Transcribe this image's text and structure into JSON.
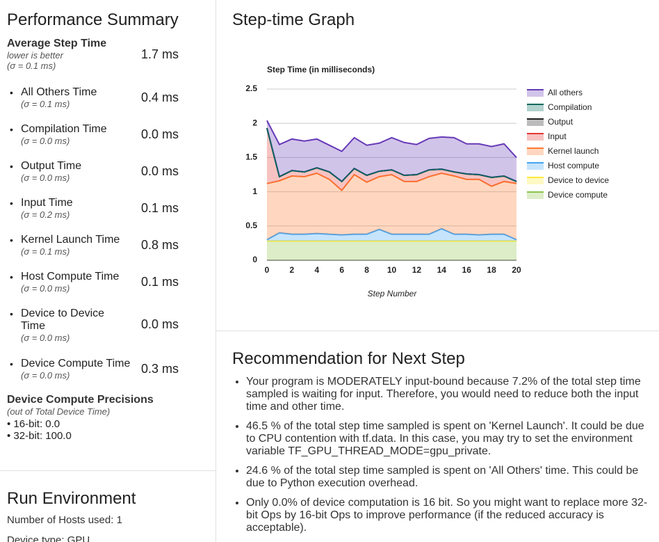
{
  "summary": {
    "title": "Performance Summary",
    "average": {
      "label": "Average Step Time",
      "note": "lower is better",
      "sigma": "(σ = 0.1 ms)",
      "value": "1.7 ms"
    },
    "items": [
      {
        "label": "All Others Time",
        "sigma": "(σ = 0.1 ms)",
        "value": "0.4 ms"
      },
      {
        "label": "Compilation Time",
        "sigma": "(σ = 0.0 ms)",
        "value": "0.0 ms"
      },
      {
        "label": "Output Time",
        "sigma": "(σ = 0.0 ms)",
        "value": "0.0 ms"
      },
      {
        "label": "Input Time",
        "sigma": "(σ = 0.2 ms)",
        "value": "0.1 ms"
      },
      {
        "label": "Kernel Launch Time",
        "sigma": "(σ = 0.1 ms)",
        "value": "0.8 ms"
      },
      {
        "label": "Host Compute Time",
        "sigma": "(σ = 0.0 ms)",
        "value": "0.1 ms"
      },
      {
        "label": "Device to Device Time",
        "sigma": "(σ = 0.0 ms)",
        "value": "0.0 ms"
      },
      {
        "label": "Device Compute Time",
        "sigma": "(σ = 0.0 ms)",
        "value": "0.3 ms"
      }
    ],
    "precisions": {
      "title": "Device Compute Precisions",
      "note": "(out of Total Device Time)",
      "items": [
        "16-bit: 0.0",
        "32-bit: 100.0"
      ]
    }
  },
  "run_environment": {
    "title": "Run Environment",
    "lines": [
      "Number of Hosts used: 1",
      "Device type: GPU"
    ]
  },
  "graph_heading": "Step-time Graph",
  "chart_data": {
    "type": "stacked-area",
    "title": "Step Time (in milliseconds)",
    "x_label": "Step Number",
    "x": [
      0,
      1,
      2,
      3,
      4,
      5,
      6,
      7,
      8,
      9,
      10,
      11,
      12,
      13,
      14,
      15,
      16,
      17,
      18,
      19,
      20
    ],
    "xlim": [
      0,
      20
    ],
    "xticks": [
      0,
      2,
      4,
      6,
      8,
      10,
      12,
      14,
      16,
      18,
      20
    ],
    "ylim": [
      0,
      2.5
    ],
    "yticks": [
      0,
      0.5,
      1,
      1.5,
      2,
      2.5
    ],
    "grid": true,
    "series": [
      {
        "name": "All others",
        "color": "#673ab7",
        "values": [
          0.11,
          0.47,
          0.46,
          0.45,
          0.42,
          0.39,
          0.44,
          0.45,
          0.44,
          0.41,
          0.47,
          0.48,
          0.44,
          0.46,
          0.47,
          0.5,
          0.44,
          0.45,
          0.45,
          0.47,
          0.35
        ]
      },
      {
        "name": "Compilation",
        "color": "#00695c",
        "values": [
          0,
          0,
          0,
          0,
          0,
          0,
          0,
          0,
          0,
          0,
          0,
          0,
          0,
          0,
          0,
          0,
          0,
          0,
          0,
          0,
          0
        ]
      },
      {
        "name": "Output",
        "color": "#212121",
        "values": [
          0,
          0,
          0,
          0,
          0,
          0,
          0,
          0,
          0,
          0,
          0,
          0,
          0,
          0,
          0,
          0,
          0,
          0,
          0,
          0,
          0
        ]
      },
      {
        "name": "Input",
        "color": "#e53935",
        "values": [
          0.81,
          0.06,
          0.08,
          0.07,
          0.08,
          0.11,
          0.13,
          0.09,
          0.1,
          0.08,
          0.07,
          0.09,
          0.1,
          0.1,
          0.06,
          0.06,
          0.08,
          0.07,
          0.13,
          0.08,
          0.03
        ]
      },
      {
        "name": "Kernel launch",
        "color": "#ff7a2f",
        "values": [
          0.82,
          0.76,
          0.85,
          0.84,
          0.88,
          0.8,
          0.65,
          0.87,
          0.76,
          0.77,
          0.87,
          0.77,
          0.77,
          0.84,
          0.81,
          0.85,
          0.8,
          0.81,
          0.7,
          0.77,
          0.82
        ]
      },
      {
        "name": "Host compute",
        "color": "#42a5f5",
        "values": [
          0.02,
          0.12,
          0.1,
          0.1,
          0.11,
          0.1,
          0.09,
          0.1,
          0.1,
          0.17,
          0.1,
          0.1,
          0.1,
          0.1,
          0.18,
          0.1,
          0.1,
          0.09,
          0.1,
          0.1,
          0.02
        ]
      },
      {
        "name": "Device to device",
        "color": "#ffeb3b",
        "values": [
          0,
          0,
          0,
          0,
          0,
          0,
          0,
          0,
          0,
          0,
          0,
          0,
          0,
          0,
          0,
          0,
          0,
          0,
          0,
          0,
          0
        ]
      },
      {
        "name": "Device compute",
        "color": "#8bc34a",
        "values": [
          0.28,
          0.28,
          0.28,
          0.28,
          0.28,
          0.28,
          0.28,
          0.28,
          0.28,
          0.28,
          0.28,
          0.28,
          0.28,
          0.28,
          0.28,
          0.28,
          0.28,
          0.28,
          0.28,
          0.28,
          0.28
        ]
      }
    ]
  },
  "recommendation": {
    "title": "Recommendation for Next Step",
    "items": [
      "Your program is MODERATELY input-bound because 7.2% of the total step time sampled is waiting for input. Therefore, you would need to reduce both the input time and other time.",
      "46.5 % of the total step time sampled is spent on 'Kernel Launch'. It could be due to CPU contention with tf.data. In this case, you may try to set the environment variable TF_GPU_THREAD_MODE=gpu_private.",
      "24.6 % of the total step time sampled is spent on 'All Others' time. This could be due to Python execution overhead.",
      "Only 0.0% of device computation is 16 bit. So you might want to replace more 32-bit Ops by 16-bit Ops to improve performance (if the reduced accuracy is acceptable)."
    ]
  }
}
